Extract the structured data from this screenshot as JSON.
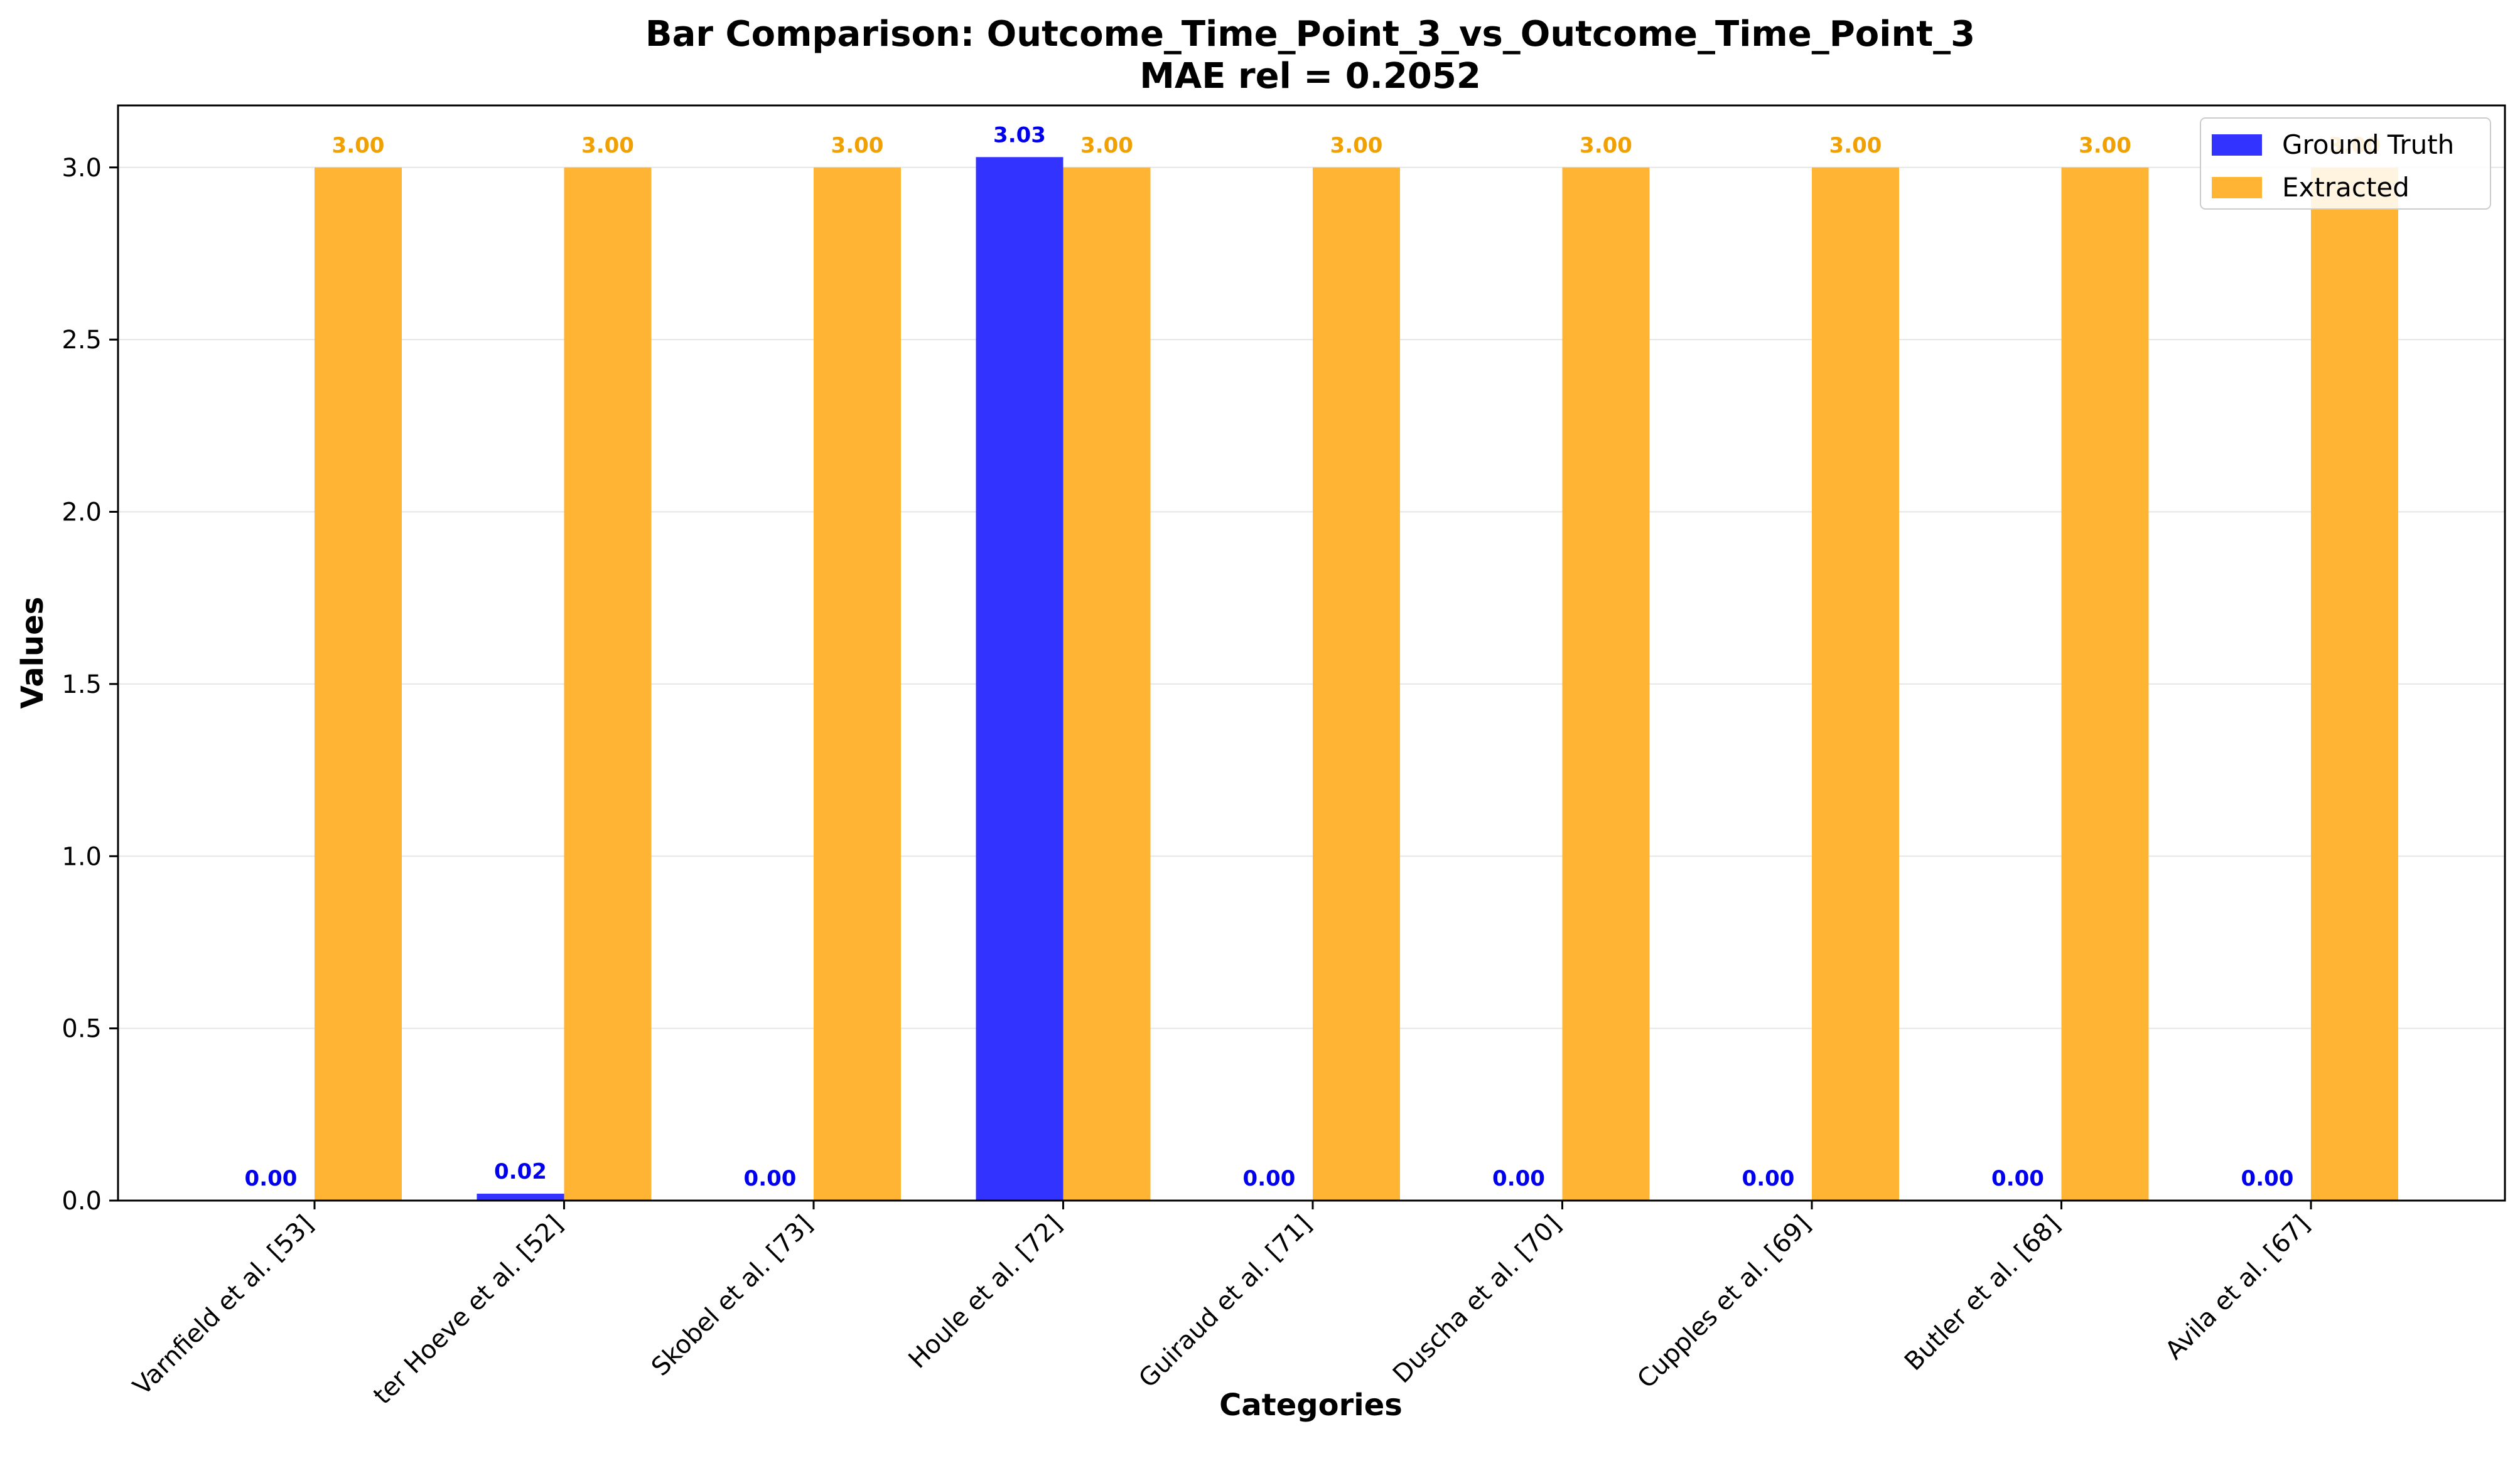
{
  "chart_data": {
    "type": "bar",
    "title": "Bar Comparison: Outcome_Time_Point_3_vs_Outcome_Time_Point_3",
    "subtitle": "MAE rel = 0.2052",
    "xlabel": "Categories",
    "ylabel": "Values",
    "ylim": [
      0,
      3.18
    ],
    "yticks": [
      "0.0",
      "0.5",
      "1.0",
      "1.5",
      "2.0",
      "2.5",
      "3.0"
    ],
    "grid": true,
    "legend_position": "top-right",
    "categories": [
      "Varnfield et al. [53]",
      "ter Hoeve et al. [52]",
      "Skobel et al. [73]",
      "Houle et al. [72]",
      "Guiraud et al. [71]",
      "Duscha et al. [70]",
      "Cupples et al. [69]",
      "Butler et al. [68]",
      "Avila et al. [67]"
    ],
    "series": [
      {
        "name": "Ground Truth",
        "color": "#3333ff",
        "label_color": "#0000ee",
        "values": [
          0.0,
          0.02,
          0.0,
          3.03,
          0.0,
          0.0,
          0.0,
          0.0,
          0.0
        ],
        "labels": [
          "0.00",
          "0.02",
          "0.00",
          "3.03",
          "0.00",
          "0.00",
          "0.00",
          "0.00",
          "0.00"
        ]
      },
      {
        "name": "Extracted",
        "color": "#ffb533",
        "label_color": "#f0a000",
        "values": [
          3.0,
          3.0,
          3.0,
          3.0,
          3.0,
          3.0,
          3.0,
          3.0,
          3.0
        ],
        "labels": [
          "3.00",
          "3.00",
          "3.00",
          "3.00",
          "3.00",
          "3.00",
          "3.00",
          "3.00",
          "3.00"
        ]
      }
    ]
  }
}
